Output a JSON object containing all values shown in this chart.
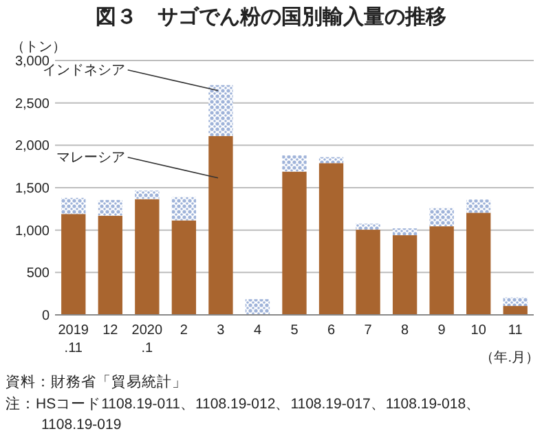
{
  "chart_data": {
    "type": "bar",
    "stacked": true,
    "title": "図３　サゴでん粉の国別輸入量の推移",
    "ylabel": "（トン）",
    "xlabel": "（年.月）",
    "categories": [
      "2019\n.11",
      "12",
      "2020\n.1",
      "2",
      "3",
      "4",
      "5",
      "6",
      "7",
      "8",
      "9",
      "10",
      "11"
    ],
    "series": [
      {
        "name": "マレーシア",
        "color": "#a9652f",
        "values": [
          1190,
          1170,
          1365,
          1115,
          2110,
          0,
          1690,
          1790,
          1005,
          940,
          1045,
          1205,
          105
        ]
      },
      {
        "name": "インドネシア",
        "color": "#9fb3d9",
        "values": [
          190,
          185,
          100,
          275,
          600,
          185,
          190,
          70,
          70,
          80,
          215,
          155,
          100
        ]
      }
    ],
    "ylim": [
      0,
      3000
    ],
    "yticks": [
      0,
      {
        "value": 500,
        "label": "500"
      },
      {
        "value": 1000,
        "label": "1,000"
      },
      {
        "value": 1500,
        "label": "1,500"
      },
      {
        "value": 2000,
        "label": "2,000"
      },
      {
        "value": 2500,
        "label": "2,500"
      },
      {
        "value": 3000,
        "label": "3,000"
      }
    ],
    "grid": "y",
    "legend": false,
    "annotations": [
      "資料：財務省「貿易統計」",
      "注：HSコード1108.19-011、1108.19-012、1108.19-017、1108.19-018、1108.19-019"
    ]
  }
}
